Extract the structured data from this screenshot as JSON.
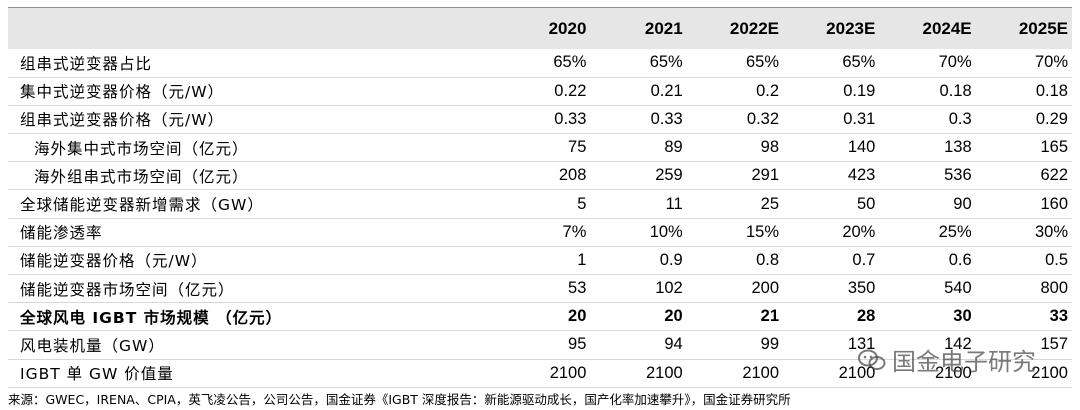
{
  "table": {
    "headers": [
      "",
      "2020",
      "2021",
      "2022E",
      "2023E",
      "2024E",
      "2025E"
    ],
    "rows": [
      {
        "label": "组串式逆变器占比",
        "values": [
          "65%",
          "65%",
          "65%",
          "65%",
          "70%",
          "70%"
        ]
      },
      {
        "label": "集中式逆变器价格（元/W）",
        "values": [
          "0.22",
          "0.21",
          "0.2",
          "0.19",
          "0.18",
          "0.18"
        ]
      },
      {
        "label": "组串式逆变器价格（元/W）",
        "values": [
          "0.33",
          "0.33",
          "0.32",
          "0.31",
          "0.3",
          "0.29"
        ]
      },
      {
        "label": "海外集中式市场空间（亿元）",
        "values": [
          "75",
          "89",
          "98",
          "140",
          "138",
          "165"
        ]
      },
      {
        "label": "海外组串式市场空间（亿元）",
        "values": [
          "208",
          "259",
          "291",
          "423",
          "536",
          "622"
        ]
      },
      {
        "label": "全球储能逆变器新增需求（GW）",
        "values": [
          "5",
          "11",
          "25",
          "50",
          "90",
          "160"
        ]
      },
      {
        "label": "储能渗透率",
        "values": [
          "7%",
          "10%",
          "15%",
          "20%",
          "25%",
          "30%"
        ]
      },
      {
        "label": "储能逆变器价格（元/W）",
        "values": [
          "1",
          "0.9",
          "0.8",
          "0.7",
          "0.6",
          "0.5"
        ]
      },
      {
        "label": "储能逆变器市场空间（亿元）",
        "values": [
          "53",
          "102",
          "200",
          "350",
          "540",
          "800"
        ]
      },
      {
        "label": "全球风电 IGBT 市场规模 （亿元）",
        "values": [
          "20",
          "20",
          "21",
          "28",
          "30",
          "33"
        ]
      },
      {
        "label": "风电装机量（GW）",
        "values": [
          "95",
          "94",
          "99",
          "131",
          "142",
          "157"
        ]
      },
      {
        "label": "IGBT 单 GW 价值量",
        "values": [
          "2100",
          "2100",
          "2100",
          "2100",
          "2100",
          "2100"
        ]
      }
    ]
  },
  "source": "来源：GWEC，IRENA、CPIA，英飞凌公告，公司公告，国金证券《IGBT 深度报告：新能源驱动成长，国产化率加速攀升》，国金证券研究所",
  "watermark": {
    "text": "国金电子研究",
    "icon": "wechat-icon"
  },
  "colors": {
    "header_bg": "#e6e6e6",
    "top_rule": "#4aa3df",
    "row_rule": "#d7d7d7"
  }
}
